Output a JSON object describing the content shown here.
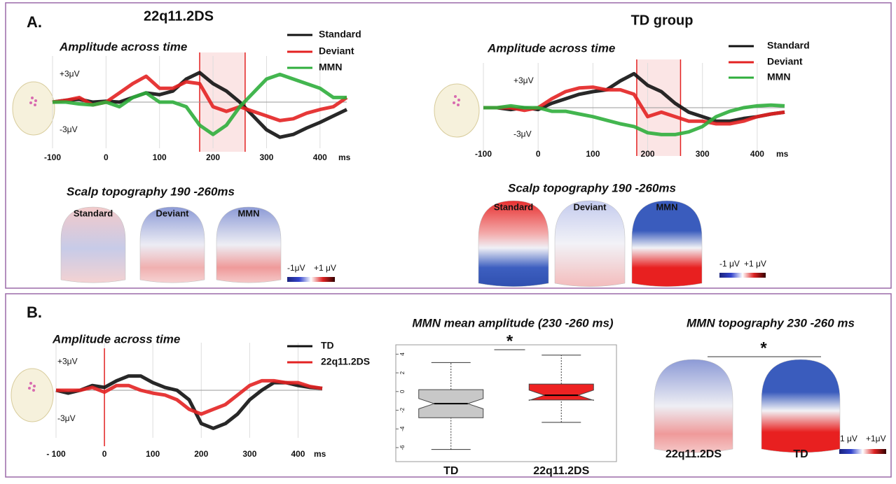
{
  "figure": {
    "panel_a": {
      "label": "A.",
      "groups": [
        "22q11.2DS",
        "TD group"
      ],
      "scalp_titles": [
        "Scalp topography 190 -260ms",
        "Scalp topography 190 -260ms"
      ],
      "topo_labels": [
        "Standard",
        "Deviant",
        "MMN"
      ],
      "colorbars": [
        [
          "-1μV",
          "+1 μV"
        ],
        [
          "-1 μV",
          "+1 μV"
        ]
      ]
    },
    "panel_b": {
      "label": "B.",
      "topo_title": "MMN topography 230 -260 ms",
      "topo_labels": [
        "22q11.2DS",
        "TD"
      ],
      "significance": "*",
      "colorbar": [
        "-1 μV",
        "+1μV"
      ]
    }
  },
  "chart_data": [
    {
      "type": "line",
      "title": "Amplitude across time",
      "x_label": "ms",
      "x": [
        -100,
        -75,
        -50,
        -25,
        0,
        25,
        50,
        75,
        100,
        125,
        150,
        175,
        200,
        225,
        250,
        275,
        300,
        325,
        350,
        375,
        400,
        425,
        450
      ],
      "series": [
        {
          "name": "Standard",
          "color": "#111111",
          "values": [
            0,
            0.2,
            0.3,
            0,
            0.1,
            0,
            0.5,
            1,
            0.8,
            1.2,
            2.5,
            3.2,
            2,
            1.2,
            0,
            -1.5,
            -3,
            -3.8,
            -3.5,
            -2.8,
            -2.2,
            -1.5,
            -0.8
          ]
        },
        {
          "name": "Deviant",
          "color": "#e32222",
          "values": [
            0,
            0.2,
            0.5,
            -0.3,
            0,
            1,
            2,
            2.8,
            1.5,
            1.5,
            2.2,
            2,
            -0.5,
            -1,
            -0.5,
            -1,
            -1.5,
            -2,
            -1.8,
            -1.2,
            -0.8,
            -0.5,
            0.5
          ]
        },
        {
          "name": "MMN",
          "color": "#2fae3c",
          "values": [
            0,
            0,
            -0.2,
            -0.3,
            0,
            -0.5,
            0.5,
            1,
            0,
            0,
            -0.5,
            -2.5,
            -3.5,
            -2.5,
            -0.5,
            1,
            2.5,
            3,
            2.5,
            2,
            1.5,
            0.5,
            0.5
          ]
        }
      ],
      "xlim": [
        -100,
        450
      ],
      "ylim": [
        -5,
        5
      ],
      "xticks": [
        -100,
        0,
        100,
        200,
        300,
        400
      ],
      "yticks": [
        {
          "value": 3,
          "label": "+3μV"
        },
        {
          "value": -3,
          "label": "-3μV"
        }
      ],
      "window": [
        175,
        260
      ],
      "grid": true
    },
    {
      "type": "line",
      "title": "Amplitude across time",
      "x_label": "ms",
      "x": [
        -100,
        -75,
        -50,
        -25,
        0,
        25,
        50,
        75,
        100,
        125,
        150,
        175,
        200,
        225,
        250,
        275,
        300,
        325,
        350,
        375,
        400,
        425,
        450
      ],
      "series": [
        {
          "name": "Standard",
          "color": "#111111",
          "values": [
            0,
            0,
            -0.2,
            0,
            -0.2,
            0.5,
            1,
            1.5,
            1.8,
            2,
            3,
            3.8,
            2.5,
            1.8,
            0.5,
            -0.5,
            -1,
            -1.5,
            -1.5,
            -1.2,
            -1,
            -0.7,
            -0.5
          ]
        },
        {
          "name": "Deviant",
          "color": "#e32222",
          "values": [
            0,
            0,
            0,
            -0.3,
            0,
            1,
            1.8,
            2.2,
            2.3,
            2,
            2,
            1.5,
            -1,
            -0.5,
            -1,
            -1.5,
            -1.5,
            -1.8,
            -1.8,
            -1.5,
            -1,
            -0.7,
            -0.5
          ]
        },
        {
          "name": "MMN",
          "color": "#2fae3c",
          "values": [
            0,
            0,
            0.2,
            0,
            0,
            -0.4,
            -0.4,
            -0.7,
            -1,
            -1.4,
            -1.8,
            -2.1,
            -2.8,
            -3,
            -3,
            -2.7,
            -2.1,
            -1,
            -0.4,
            0,
            0.2,
            0.3,
            0.2
          ]
        }
      ],
      "xlim": [
        -100,
        450
      ],
      "ylim": [
        -5,
        5
      ],
      "xticks": [
        -100,
        0,
        100,
        200,
        300,
        400
      ],
      "yticks": [
        {
          "value": 3,
          "label": "+3μV"
        },
        {
          "value": -3,
          "label": "-3μV"
        }
      ],
      "window": [
        180,
        260
      ],
      "grid": true
    },
    {
      "type": "line",
      "title": "Amplitude across time",
      "x_label": "ms",
      "x": [
        -100,
        -75,
        -50,
        -25,
        0,
        25,
        50,
        75,
        100,
        125,
        150,
        175,
        200,
        225,
        250,
        275,
        300,
        325,
        350,
        375,
        400,
        425,
        450
      ],
      "series": [
        {
          "name": "TD",
          "color": "#111111",
          "values": [
            0,
            -0.3,
            0,
            0.5,
            0.3,
            1,
            1.5,
            1.5,
            0.8,
            0.3,
            0,
            -1,
            -3.5,
            -4,
            -3.5,
            -2.5,
            -1,
            0,
            0.8,
            0.8,
            0.5,
            0.3,
            0.2
          ]
        },
        {
          "name": "22q11.2DS",
          "color": "#e32222",
          "values": [
            0,
            0,
            0,
            0.3,
            -0.2,
            0.5,
            0.5,
            0,
            -0.3,
            -0.5,
            -1,
            -2,
            -2.5,
            -2,
            -1.5,
            -0.5,
            0.5,
            1,
            1,
            0.8,
            0.8,
            0.4,
            0.2
          ]
        }
      ],
      "xlim": [
        -100,
        450
      ],
      "ylim": [
        -5,
        5
      ],
      "xticks": [
        {
          "value": -100,
          "label": "- 100"
        },
        0,
        100,
        200,
        300,
        400
      ],
      "yticks": [
        {
          "value": 3,
          "label": "+3μV"
        },
        {
          "value": -3,
          "label": "-3μV"
        }
      ],
      "onset": 0,
      "grid": true
    },
    {
      "type": "box",
      "title": "MMN mean amplitude (230 -260 ms)",
      "categories": [
        "TD",
        "22q11.2DS"
      ],
      "boxes": [
        {
          "whisker_low": -6.2,
          "q1": -2.8,
          "median": -1.3,
          "q3": 0.2,
          "whisker_high": 3.1
        },
        {
          "whisker_low": -3.3,
          "q1": -0.9,
          "median": -0.4,
          "q3": 0.8,
          "whisker_high": 3.9
        }
      ],
      "colors": [
        "#c8c8c8",
        "#ee2222"
      ],
      "ylim": [
        -7.5,
        5
      ],
      "yticks": [
        4,
        2,
        0,
        -2,
        -4,
        -6
      ],
      "annotation": "*"
    }
  ]
}
